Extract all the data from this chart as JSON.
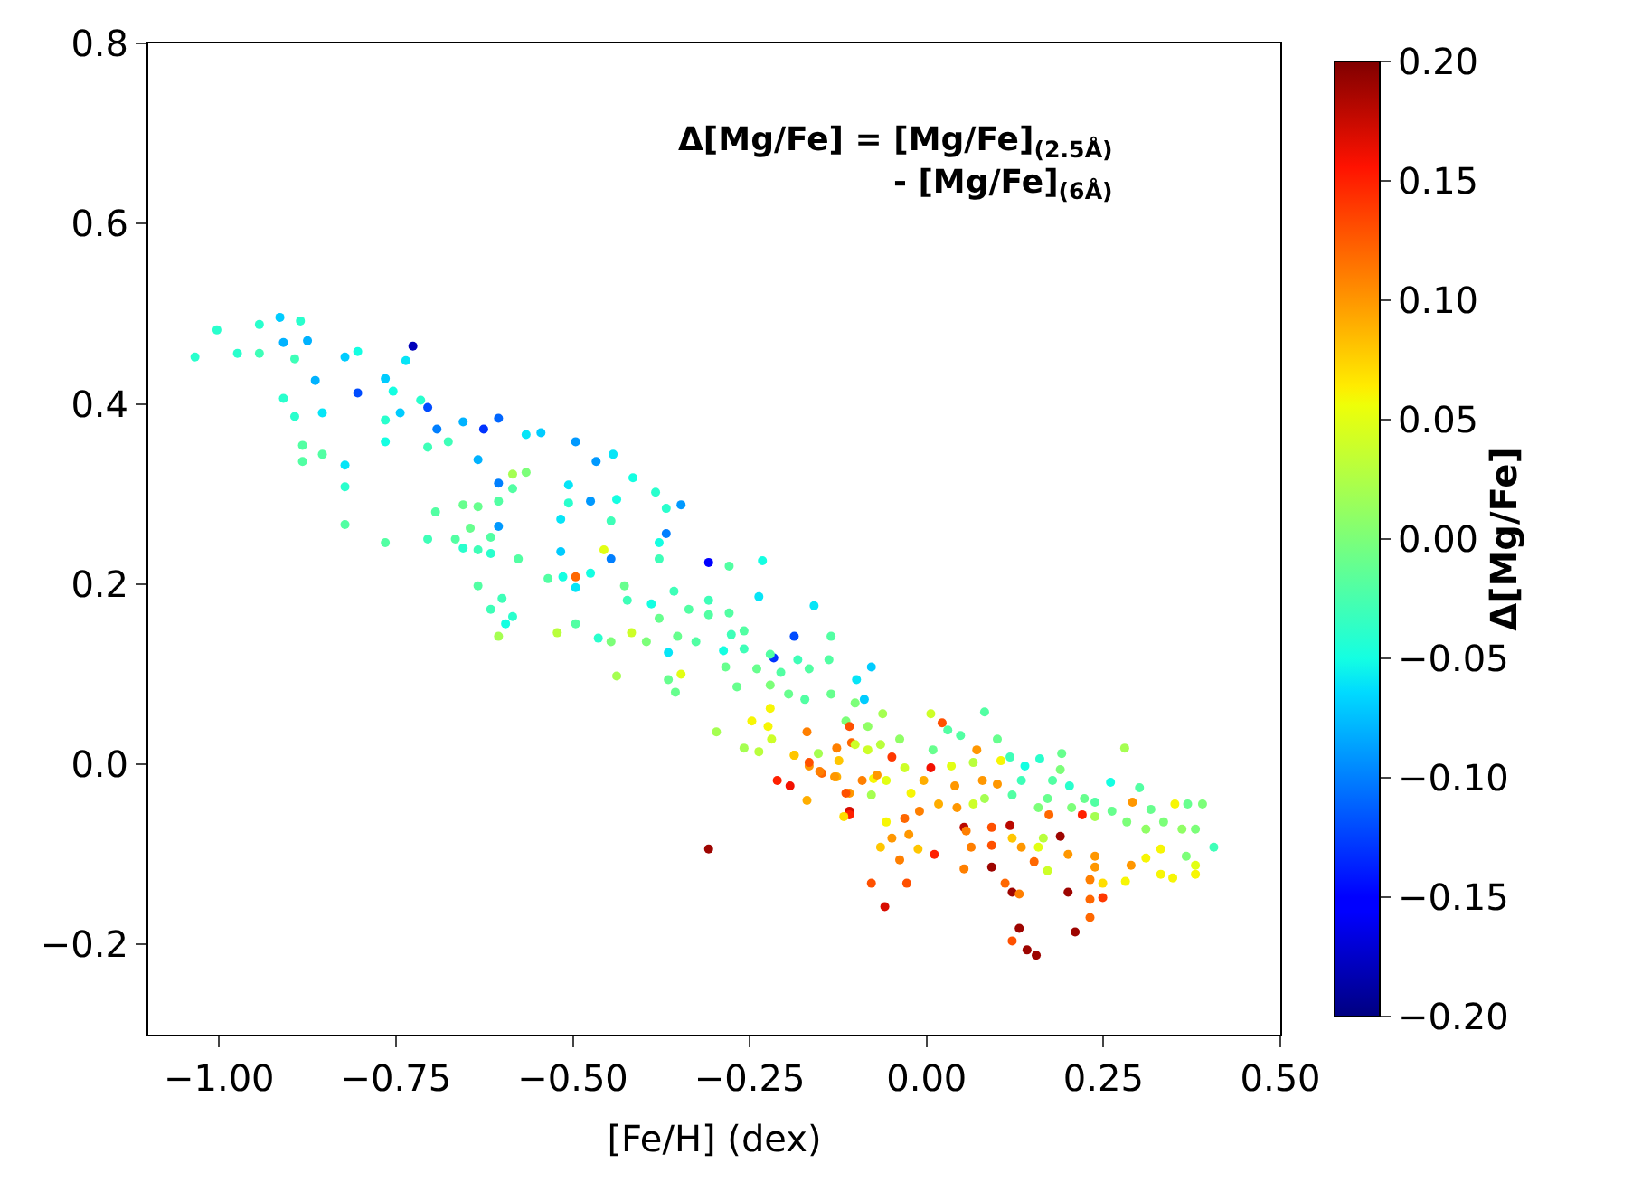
{
  "chart_data": {
    "type": "scatter",
    "xlabel": "[Fe/H] (dex)",
    "clabel": "Δ[Mg/Fe]",
    "annotations": [
      "Δ[Mg/Fe] = [Mg/Fe]$_{(2.5Å)}$\n- [Mg/Fe]$_{(6Å)}$"
    ],
    "xlim": [
      -1.1,
      0.5
    ],
    "xticks": [
      {
        "value": -1.0,
        "label": "−1.00"
      },
      {
        "value": -0.75,
        "label": "−0.75"
      },
      {
        "value": -0.5,
        "label": "−0.50"
      },
      {
        "value": -0.25,
        "label": "−0.25"
      },
      {
        "value": 0.0,
        "label": "0.00"
      },
      {
        "value": 0.25,
        "label": "0.25"
      },
      {
        "value": 0.5,
        "label": "0.50"
      }
    ],
    "ylim": [
      -0.3,
      0.8
    ],
    "yticks": [
      {
        "value": -0.2,
        "label": "−0.2"
      },
      {
        "value": 0.0,
        "label": "0.0"
      },
      0.2,
      0.4,
      0.6,
      0.8
    ],
    "clim": [
      -0.2,
      0.2
    ],
    "cticks": [
      {
        "value": -0.2,
        "label": "−0.20"
      },
      {
        "value": -0.15,
        "label": "−0.15"
      },
      {
        "value": -0.1,
        "label": "−0.10"
      },
      {
        "value": -0.05,
        "label": "−0.05"
      },
      {
        "value": 0.0,
        "label": "0.00"
      },
      {
        "value": 0.05,
        "label": "0.05"
      },
      {
        "value": 0.1,
        "label": "0.10"
      },
      {
        "value": 0.15,
        "label": "0.15"
      },
      {
        "value": 0.2,
        "label": "0.20"
      }
    ],
    "marker": "circle",
    "x": [
      -1.034,
      -1.003,
      -0.943,
      -0.914,
      -0.885,
      -0.909,
      -0.875,
      -0.974,
      -0.943,
      -0.893,
      -0.822,
      -0.804,
      -0.726,
      -0.736,
      -0.864,
      -0.804,
      -0.765,
      -0.754,
      -0.909,
      -0.893,
      -0.854,
      -0.765,
      -0.744,
      -0.715,
      -0.705,
      -0.692,
      -0.655,
      -0.626,
      -0.605,
      -0.676,
      -0.705,
      -0.765,
      -0.882,
      -0.882,
      -0.854,
      -0.822,
      -0.822,
      -0.822,
      -0.765,
      -0.705,
      -0.694,
      -0.634,
      -0.566,
      -0.545,
      -0.496,
      -0.467,
      -0.443,
      -0.585,
      -0.566,
      -0.585,
      -0.605,
      -0.605,
      -0.655,
      -0.634,
      -0.645,
      -0.666,
      -0.655,
      -0.634,
      -0.616,
      -0.616,
      -0.605,
      -0.577,
      -0.634,
      -0.616,
      -0.6,
      -0.595,
      -0.585,
      -0.605,
      -0.535,
      -0.514,
      -0.496,
      -0.496,
      -0.475,
      -0.517,
      -0.517,
      -0.506,
      -0.506,
      -0.475,
      -0.456,
      -0.446,
      -0.438,
      -0.446,
      -0.522,
      -0.496,
      -0.464,
      -0.446,
      -0.438,
      -0.415,
      -0.383,
      -0.347,
      -0.368,
      -0.368,
      -0.378,
      -0.378,
      -0.308,
      -0.279,
      -0.232,
      -0.237,
      -0.159,
      -0.187,
      -0.216,
      -0.078,
      -0.427,
      -0.423,
      -0.389,
      -0.357,
      -0.378,
      -0.336,
      -0.308,
      -0.308,
      -0.279,
      -0.258,
      -0.276,
      -0.352,
      -0.396,
      -0.417,
      -0.365,
      -0.326,
      -0.287,
      -0.258,
      -0.221,
      -0.284,
      -0.24,
      -0.206,
      -0.182,
      -0.166,
      -0.135,
      -0.138,
      -0.365,
      -0.347,
      -0.355,
      -0.268,
      -0.221,
      -0.195,
      -0.172,
      -0.135,
      -0.101,
      -0.099,
      -0.088,
      -0.221,
      -0.247,
      -0.224,
      -0.219,
      -0.297,
      -0.258,
      -0.237,
      -0.187,
      -0.169,
      -0.153,
      -0.166,
      -0.148,
      -0.127,
      -0.106,
      -0.124,
      -0.127,
      -0.109,
      -0.211,
      -0.193,
      -0.169,
      -0.109,
      -0.075,
      -0.083,
      -0.114,
      -0.062,
      -0.308,
      -0.109,
      -0.078,
      -0.059,
      -0.028,
      -0.038,
      -0.049,
      -0.025,
      -0.01,
      -0.012,
      0.011,
      -0.057,
      -0.031,
      0.053,
      0.056,
      0.063,
      0.053,
      0.092,
      0.092,
      0.092,
      0.111,
      0.121,
      0.131,
      0.118,
      0.121,
      0.134,
      0.152,
      0.131,
      0.121,
      0.142,
      0.155,
      0.171,
      0.2,
      0.2,
      0.189,
      0.21,
      0.231,
      0.231,
      0.231,
      0.249,
      0.249,
      0.238,
      0.238,
      0.281,
      0.289,
      0.31,
      0.331,
      0.331,
      0.348,
      0.38,
      0.38,
      0.367,
      0.406,
      0.39,
      0.369,
      0.351,
      0.38,
      0.361,
      0.335,
      0.317,
      0.31,
      0.291,
      0.301,
      0.28,
      0.283,
      0.262,
      0.26,
      0.238,
      0.238,
      0.22,
      0.223,
      0.205,
      0.202,
      0.189,
      0.191,
      0.178,
      0.171,
      0.158,
      0.16,
      0.139,
      0.134,
      0.118,
      0.105,
      0.121,
      0.1,
      0.082,
      0.1,
      0.071,
      0.079,
      0.082,
      0.066,
      0.066,
      0.048,
      0.03,
      0.022,
      0.006,
      0.035,
      0.04,
      0.043,
      0.017,
      0.006,
      0.009,
      -0.004,
      -0.022,
      -0.031,
      -0.049,
      -0.038,
      -0.057,
      -0.07,
      -0.078,
      -0.091,
      -0.101,
      -0.109,
      -0.083,
      -0.065,
      -0.114,
      -0.13,
      -0.151,
      -0.166,
      -0.187,
      -0.117,
      0.165,
      0.158,
      0.173,
      -0.065
    ],
    "values": [
      0.452,
      0.482,
      0.488,
      0.496,
      0.492,
      0.468,
      0.47,
      0.456,
      0.456,
      0.45,
      0.452,
      0.458,
      0.464,
      0.448,
      0.426,
      0.412,
      0.428,
      0.414,
      0.406,
      0.386,
      0.39,
      0.382,
      0.39,
      0.404,
      0.396,
      0.372,
      0.38,
      0.372,
      0.384,
      0.358,
      0.352,
      0.358,
      0.354,
      0.336,
      0.344,
      0.332,
      0.308,
      0.266,
      0.246,
      0.25,
      0.28,
      0.338,
      0.366,
      0.368,
      0.358,
      0.336,
      0.344,
      0.322,
      0.324,
      0.306,
      0.312,
      0.292,
      0.288,
      0.286,
      0.262,
      0.25,
      0.24,
      0.238,
      0.252,
      0.234,
      0.264,
      0.228,
      0.198,
      0.172,
      0.184,
      0.156,
      0.164,
      0.142,
      0.206,
      0.208,
      0.208,
      0.196,
      0.212,
      0.236,
      0.272,
      0.29,
      0.31,
      0.292,
      0.238,
      0.228,
      0.294,
      0.27,
      0.146,
      0.156,
      0.14,
      0.136,
      0.098,
      0.318,
      0.302,
      0.288,
      0.284,
      0.256,
      0.246,
      0.228,
      0.224,
      0.22,
      0.226,
      0.186,
      0.176,
      0.142,
      0.118,
      0.108,
      0.198,
      0.182,
      0.178,
      0.192,
      0.162,
      0.172,
      0.182,
      0.166,
      0.168,
      0.148,
      0.144,
      0.142,
      0.136,
      0.146,
      0.124,
      0.136,
      0.126,
      0.128,
      0.122,
      0.108,
      0.106,
      0.102,
      0.116,
      0.106,
      0.142,
      0.116,
      0.094,
      0.1,
      0.08,
      0.086,
      0.088,
      0.078,
      0.072,
      0.078,
      0.068,
      0.094,
      0.072,
      0.062,
      0.048,
      0.042,
      0.028,
      0.036,
      0.018,
      0.014,
      0.01,
      0.036,
      0.012,
      -0.002,
      -0.01,
      0.018,
      0.024,
      0.004,
      -0.014,
      -0.032,
      -0.018,
      -0.024,
      -0.04,
      -0.052,
      -0.016,
      0.016,
      0.048,
      0.056,
      -0.094,
      -0.056,
      -0.132,
      -0.158,
      -0.132,
      -0.106,
      -0.082,
      -0.078,
      -0.052,
      -0.094,
      -0.1,
      -0.064,
      -0.06,
      -0.07,
      -0.074,
      -0.092,
      -0.116,
      -0.07,
      -0.09,
      -0.114,
      -0.132,
      -0.142,
      -0.144,
      -0.068,
      -0.082,
      -0.092,
      -0.108,
      -0.182,
      -0.196,
      -0.206,
      -0.212,
      -0.118,
      -0.142,
      -0.1,
      -0.08,
      -0.186,
      -0.128,
      -0.15,
      -0.17,
      -0.148,
      -0.132,
      -0.102,
      -0.114,
      -0.13,
      -0.112,
      -0.104,
      -0.094,
      -0.122,
      -0.126,
      -0.112,
      -0.122,
      -0.102,
      -0.092,
      -0.044,
      -0.044,
      -0.044,
      -0.072,
      -0.072,
      -0.064,
      -0.05,
      -0.072,
      -0.042,
      -0.026,
      0.018,
      -0.064,
      -0.052,
      -0.02,
      -0.042,
      -0.058,
      -0.056,
      -0.038,
      -0.048,
      -0.024,
      -0.006,
      0.012,
      -0.018,
      -0.038,
      -0.048,
      0.006,
      -0.002,
      -0.018,
      0.008,
      0.004,
      -0.034,
      -0.022,
      0.058,
      0.028,
      0.016,
      -0.018,
      -0.038,
      -0.044,
      0.002,
      0.032,
      0.038,
      0.046,
      0.056,
      -0.002,
      -0.024,
      -0.048,
      -0.044,
      -0.004,
      0.016,
      -0.018,
      -0.032,
      -0.004,
      0.008,
      0.028,
      -0.018,
      -0.012,
      -0.034,
      -0.018,
      0.022,
      0.042,
      0.042,
      0.022,
      -0.032,
      -0.014,
      -0.008,
      0.002,
      0.01,
      -0.058,
      -0.082,
      -0.092,
      -0.056,
      -0.092
    ],
    "cvalues": [
      -0.04,
      -0.04,
      -0.04,
      -0.07,
      -0.04,
      -0.08,
      -0.08,
      -0.04,
      -0.03,
      -0.03,
      -0.07,
      -0.05,
      -0.18,
      -0.06,
      -0.08,
      -0.12,
      -0.07,
      -0.05,
      -0.04,
      -0.04,
      -0.06,
      -0.04,
      -0.07,
      -0.04,
      -0.12,
      -0.1,
      -0.08,
      -0.13,
      -0.11,
      -0.03,
      -0.03,
      -0.05,
      -0.02,
      -0.02,
      -0.02,
      -0.06,
      -0.04,
      -0.02,
      -0.02,
      -0.03,
      -0.02,
      -0.08,
      -0.06,
      -0.07,
      -0.09,
      -0.09,
      -0.06,
      0.02,
      0.0,
      -0.02,
      -0.1,
      -0.02,
      -0.01,
      -0.01,
      -0.01,
      -0.02,
      -0.04,
      -0.03,
      -0.02,
      -0.04,
      -0.09,
      -0.02,
      -0.02,
      -0.03,
      -0.03,
      -0.05,
      -0.04,
      0.02,
      -0.02,
      -0.05,
      0.12,
      -0.06,
      -0.05,
      -0.07,
      -0.06,
      -0.04,
      -0.06,
      -0.09,
      0.05,
      -0.1,
      -0.05,
      -0.03,
      0.03,
      -0.02,
      -0.04,
      0.0,
      0.02,
      -0.05,
      -0.04,
      -0.09,
      -0.04,
      -0.1,
      -0.05,
      -0.03,
      -0.15,
      -0.02,
      -0.05,
      -0.06,
      -0.06,
      -0.12,
      -0.13,
      -0.07,
      -0.01,
      -0.03,
      -0.05,
      -0.03,
      -0.01,
      -0.02,
      -0.03,
      -0.02,
      -0.02,
      -0.02,
      -0.03,
      -0.01,
      0.0,
      0.04,
      -0.06,
      -0.02,
      -0.05,
      -0.03,
      -0.02,
      -0.01,
      -0.01,
      -0.02,
      -0.03,
      -0.02,
      -0.02,
      -0.02,
      -0.01,
      0.05,
      -0.01,
      -0.01,
      0.0,
      -0.01,
      -0.02,
      -0.01,
      0.0,
      -0.06,
      -0.07,
      0.06,
      0.06,
      0.06,
      0.04,
      0.02,
      0.02,
      0.03,
      0.07,
      0.11,
      0.02,
      0.1,
      0.12,
      0.11,
      0.12,
      0.08,
      0.09,
      0.1,
      0.15,
      0.16,
      0.09,
      0.17,
      0.06,
      0.04,
      0.0,
      0.02,
      0.19,
      0.15,
      0.13,
      0.17,
      0.13,
      0.11,
      0.1,
      0.1,
      0.11,
      0.08,
      0.15,
      0.06,
      0.12,
      0.18,
      0.11,
      0.11,
      0.11,
      0.13,
      0.13,
      0.19,
      0.12,
      0.19,
      0.11,
      0.18,
      0.08,
      0.1,
      0.12,
      0.19,
      0.13,
      0.19,
      0.19,
      0.04,
      0.19,
      0.1,
      0.19,
      0.19,
      0.11,
      0.12,
      0.12,
      0.14,
      0.07,
      0.1,
      0.1,
      0.06,
      0.1,
      0.06,
      0.06,
      0.06,
      0.06,
      0.05,
      0.06,
      0.0,
      -0.03,
      0.0,
      -0.01,
      0.06,
      0.0,
      0.01,
      0.0,
      -0.01,
      0.01,
      0.1,
      -0.02,
      0.02,
      0.0,
      -0.01,
      -0.05,
      -0.02,
      0.02,
      0.15,
      -0.01,
      0.0,
      -0.04,
      0.0,
      -0.01,
      -0.02,
      -0.01,
      0.0,
      -0.04,
      -0.05,
      -0.03,
      -0.03,
      0.06,
      -0.02,
      0.1,
      -0.02,
      -0.01,
      0.1,
      0.1,
      0.02,
      0.04,
      0.03,
      -0.02,
      -0.02,
      0.13,
      0.04,
      0.05,
      0.1,
      0.1,
      0.09,
      0.16,
      -0.01,
      0.09,
      0.06,
      0.04,
      0.14,
      0.01,
      0.05,
      0.1,
      0.02,
      0.11,
      0.04,
      0.13,
      0.01,
      0.03,
      0.13,
      0.1,
      0.11,
      0.13,
      0.08,
      0.07,
      0.03,
      0.05,
      0.12,
      0.08
    ]
  }
}
